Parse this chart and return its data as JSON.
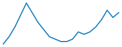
{
  "values": [
    3,
    6,
    10,
    15,
    20,
    16,
    12,
    9,
    6,
    5,
    4,
    4,
    5,
    8,
    7,
    8,
    10,
    13,
    17,
    14,
    16
  ],
  "line_color": "#2b8cc4",
  "background_color": "#ffffff",
  "linewidth": 0.9
}
